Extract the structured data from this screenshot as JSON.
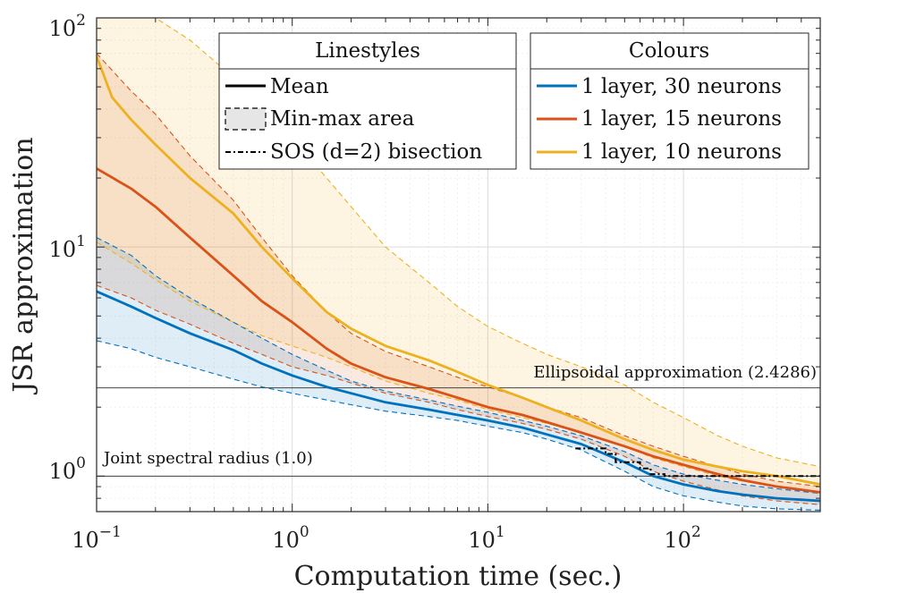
{
  "chart_data": {
    "type": "line",
    "title": "",
    "xlabel": "Computation time (sec.)",
    "ylabel": "JSR approximation",
    "xscale": "log",
    "yscale": "log",
    "xlim": [
      0.1,
      500
    ],
    "ylim": [
      0.7,
      100
    ],
    "x_ticks": [
      {
        "base": "10",
        "exp": "−1",
        "value": 0.1
      },
      {
        "base": "10",
        "exp": "0",
        "value": 1
      },
      {
        "base": "10",
        "exp": "1",
        "value": 10
      },
      {
        "base": "10",
        "exp": "2",
        "value": 100
      }
    ],
    "y_ticks": [
      {
        "base": "10",
        "exp": "0",
        "value": 1
      },
      {
        "base": "10",
        "exp": "1",
        "value": 10
      },
      {
        "base": "10",
        "exp": "2",
        "value": 100
      }
    ],
    "grid": true,
    "reference_lines": [
      {
        "name": "ellipsoidal",
        "y": 2.4286,
        "label": "Ellipsoidal approximation (2.4286)"
      },
      {
        "name": "jsr",
        "y": 1.0,
        "label": "Joint spectral radius (1.0)"
      }
    ],
    "series": [
      {
        "name": "1 layer, 10 neurons",
        "color": "#EDB120",
        "mean": {
          "x": [
            0.1,
            0.12,
            0.15,
            0.2,
            0.3,
            0.5,
            0.7,
            1,
            1.5,
            2,
            3,
            5,
            7,
            10,
            15,
            20,
            30,
            50,
            70,
            100,
            150,
            200,
            300,
            500
          ],
          "y": [
            68,
            45,
            36,
            28,
            20,
            14,
            10,
            7.3,
            5.2,
            4.4,
            3.7,
            3.2,
            2.85,
            2.5,
            2.2,
            2.0,
            1.75,
            1.45,
            1.3,
            1.18,
            1.1,
            1.05,
            1.0,
            0.92
          ]
        },
        "min": {
          "x": [
            0.1,
            0.15,
            0.2,
            0.3,
            0.5,
            0.7,
            1,
            1.5,
            2,
            3,
            5,
            7,
            10,
            15,
            20,
            30,
            50,
            70,
            100,
            150,
            200,
            300,
            500
          ],
          "y": [
            10.5,
            8.5,
            7.2,
            5.8,
            4.7,
            4.1,
            3.7,
            3.3,
            3.0,
            2.6,
            2.3,
            2.15,
            1.95,
            1.8,
            1.7,
            1.55,
            1.35,
            1.2,
            1.1,
            1.0,
            0.95,
            0.9,
            0.85
          ]
        },
        "max": {
          "x": [
            0.1,
            0.2,
            0.3,
            0.5,
            0.7,
            1,
            1.5,
            2,
            3,
            5,
            7,
            10,
            15,
            20,
            30,
            50,
            70,
            100,
            150,
            200,
            300,
            500
          ],
          "y": [
            100,
            100,
            80,
            55,
            42,
            30,
            20,
            15,
            10,
            7.0,
            5.5,
            4.5,
            3.8,
            3.4,
            3.0,
            2.5,
            2.1,
            1.8,
            1.5,
            1.35,
            1.2,
            1.1
          ]
        }
      },
      {
        "name": "1 layer, 15 neurons",
        "color": "#D95319",
        "mean": {
          "x": [
            0.1,
            0.15,
            0.2,
            0.3,
            0.5,
            0.7,
            1,
            1.5,
            2,
            3,
            5,
            7,
            10,
            15,
            20,
            30,
            50,
            70,
            100,
            150,
            200,
            300,
            500
          ],
          "y": [
            22,
            18,
            15,
            11,
            7.5,
            5.8,
            4.7,
            3.6,
            3.1,
            2.7,
            2.4,
            2.2,
            2.0,
            1.85,
            1.72,
            1.55,
            1.35,
            1.22,
            1.12,
            1.02,
            0.96,
            0.9,
            0.85
          ]
        },
        "min": {
          "x": [
            0.1,
            0.15,
            0.2,
            0.3,
            0.5,
            0.7,
            1,
            1.5,
            2,
            3,
            5,
            7,
            10,
            15,
            20,
            30,
            50,
            70,
            100,
            150,
            200,
            300,
            500
          ],
          "y": [
            6.8,
            6.0,
            5.3,
            4.6,
            3.8,
            3.4,
            3.0,
            2.75,
            2.55,
            2.3,
            2.1,
            1.95,
            1.82,
            1.7,
            1.6,
            1.45,
            1.22,
            1.05,
            0.95,
            0.87,
            0.82,
            0.78,
            0.75
          ]
        },
        "max": {
          "x": [
            0.1,
            0.15,
            0.2,
            0.3,
            0.5,
            0.7,
            1,
            1.5,
            2,
            3,
            5,
            7,
            10,
            15,
            20,
            30,
            50,
            70,
            100,
            150,
            200,
            300,
            500
          ],
          "y": [
            70,
            48,
            38,
            25,
            16,
            11,
            7.5,
            5.2,
            4.2,
            3.5,
            3.0,
            2.7,
            2.45,
            2.2,
            2.0,
            1.8,
            1.5,
            1.35,
            1.22,
            1.1,
            1.02,
            0.95,
            0.9
          ]
        }
      },
      {
        "name": "1 layer, 30 neurons",
        "color": "#0072BD",
        "mean": {
          "x": [
            0.1,
            0.15,
            0.2,
            0.3,
            0.5,
            0.7,
            1,
            1.5,
            2,
            3,
            5,
            7,
            10,
            15,
            20,
            30,
            50,
            70,
            100,
            150,
            200,
            300,
            500
          ],
          "y": [
            6.4,
            5.5,
            4.9,
            4.2,
            3.55,
            3.1,
            2.75,
            2.45,
            2.3,
            2.1,
            1.95,
            1.85,
            1.75,
            1.63,
            1.52,
            1.38,
            1.15,
            1.0,
            0.92,
            0.86,
            0.83,
            0.8,
            0.78
          ]
        },
        "min": {
          "x": [
            0.1,
            0.15,
            0.2,
            0.3,
            0.5,
            0.7,
            1,
            1.5,
            2,
            3,
            5,
            7,
            10,
            15,
            20,
            30,
            50,
            70,
            100,
            150,
            200,
            300,
            500
          ],
          "y": [
            3.9,
            3.6,
            3.3,
            3.0,
            2.65,
            2.45,
            2.3,
            2.15,
            2.05,
            1.92,
            1.82,
            1.75,
            1.65,
            1.55,
            1.45,
            1.3,
            1.05,
            0.9,
            0.82,
            0.77,
            0.74,
            0.72,
            0.71
          ]
        },
        "max": {
          "x": [
            0.1,
            0.15,
            0.2,
            0.3,
            0.5,
            0.7,
            1,
            1.5,
            2,
            3,
            5,
            7,
            10,
            15,
            20,
            30,
            50,
            70,
            100,
            150,
            200,
            300,
            500
          ],
          "y": [
            11,
            9.2,
            7.5,
            6.0,
            4.7,
            4.0,
            3.4,
            2.9,
            2.6,
            2.35,
            2.15,
            2.02,
            1.9,
            1.75,
            1.65,
            1.5,
            1.28,
            1.12,
            1.02,
            0.96,
            0.92,
            0.88,
            0.84
          ]
        }
      }
    ],
    "sos_bisection": {
      "name": "SOS (d=2) bisection",
      "x": [
        28,
        40,
        40,
        45,
        45,
        60,
        60,
        68,
        68,
        80,
        80,
        500
      ],
      "y": [
        1.32,
        1.32,
        1.25,
        1.25,
        1.15,
        1.15,
        1.08,
        1.08,
        1.02,
        1.02,
        1.0,
        1.0
      ]
    },
    "legend_linestyles": {
      "title": "Linestyles",
      "items": [
        "Mean",
        "Min-max area",
        "SOS (d=2) bisection"
      ]
    },
    "legend_colours": {
      "title": "Colours",
      "items": [
        {
          "label": "1 layer, 30 neurons",
          "color": "#0072BD"
        },
        {
          "label": "1 layer, 15 neurons",
          "color": "#D95319"
        },
        {
          "label": "1 layer, 10 neurons",
          "color": "#EDB120"
        }
      ]
    }
  }
}
